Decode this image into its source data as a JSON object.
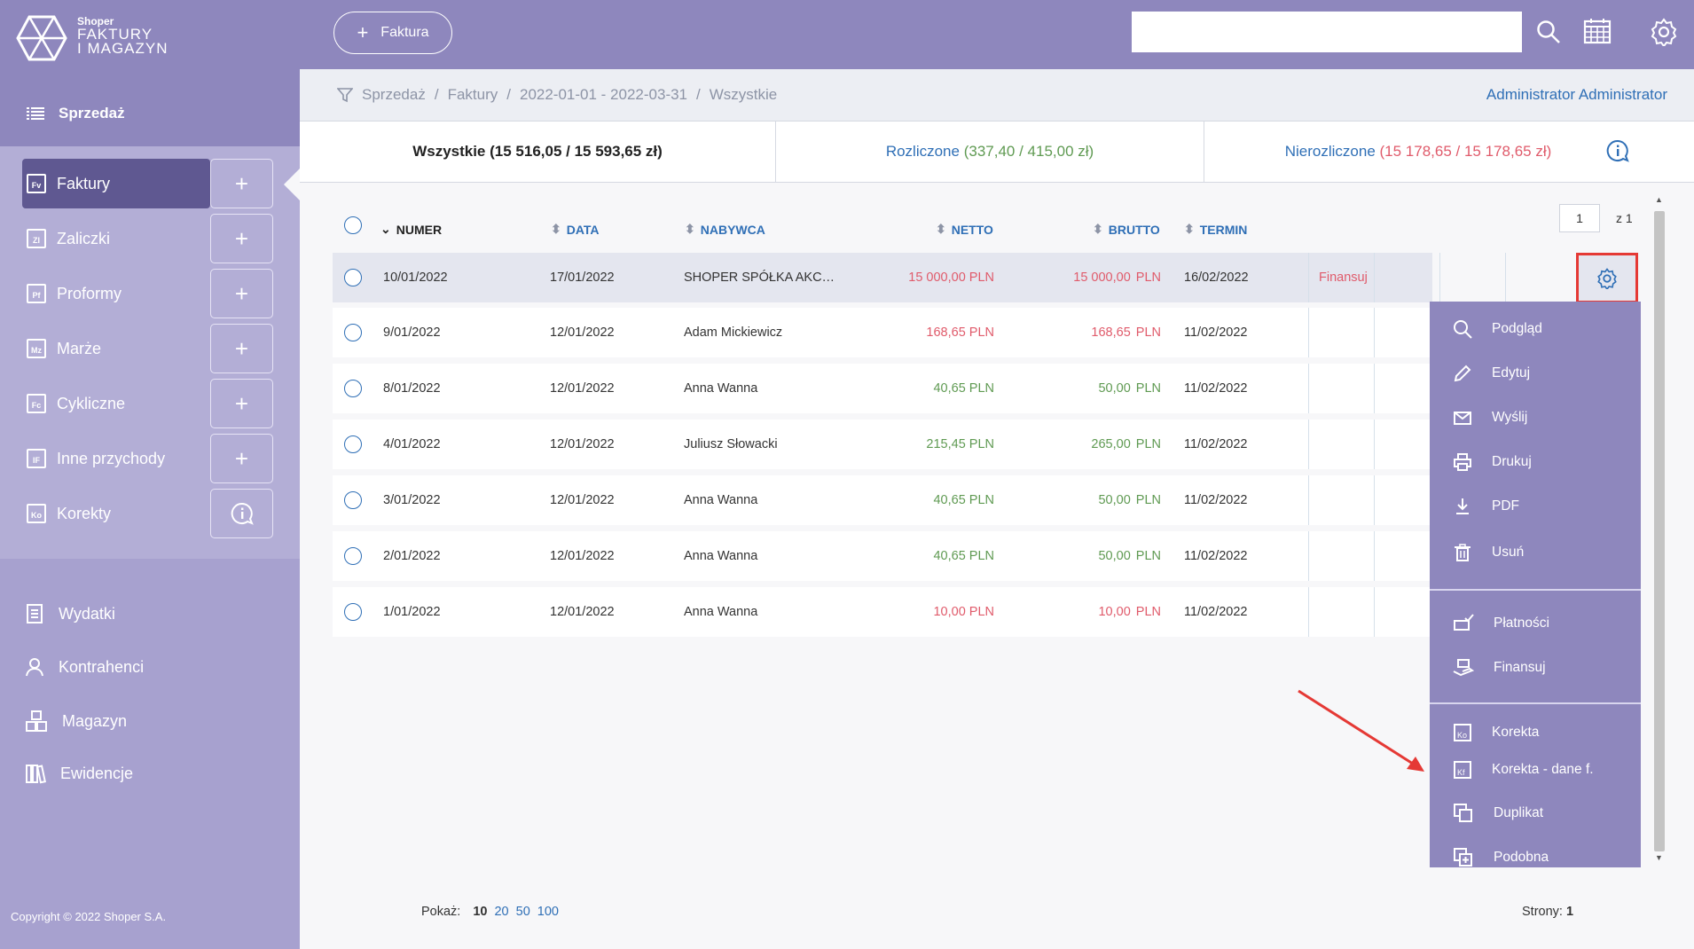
{
  "brand": {
    "line1": "Shoper",
    "line2": "FAKTURY",
    "line3": "I MAGAZYN"
  },
  "sidebar": {
    "section_title": "Sprzedaż",
    "items": [
      {
        "label": "Faktury",
        "abbr": "Fv"
      },
      {
        "label": "Zaliczki",
        "abbr": "Zl"
      },
      {
        "label": "Proformy",
        "abbr": "Pf"
      },
      {
        "label": "Marże",
        "abbr": "Mz"
      },
      {
        "label": "Cykliczne",
        "abbr": "Fc"
      },
      {
        "label": "Inne przychody",
        "abbr": "IF"
      },
      {
        "label": "Korekty",
        "abbr": "Ko"
      }
    ],
    "add_symbol": "+",
    "lower": [
      "Wydatki",
      "Kontrahenci",
      "Magazyn",
      "Ewidencje"
    ],
    "copyright": "Copyright © 2022 Shoper S.A."
  },
  "topbar": {
    "new_invoice": "Faktura",
    "search_placeholder": ""
  },
  "breadcrumb": [
    "Sprzedaż",
    "Faktury",
    "2022-01-01 - 2022-03-31",
    "Wszystkie"
  ],
  "breadcrumb_sep": "/",
  "user": "Administrator Administrator",
  "tabs": {
    "all": "Wszystkie (15 516,05 / 15 593,65 zł)",
    "settled_label": "Rozliczone",
    "settled_values": "(337,40 / 415,00 zł)",
    "unsettled_label": "Nierozliczone",
    "unsettled_values": "(15 178,65 / 15 178,65 zł)"
  },
  "pager": {
    "page": "1",
    "of": "z 1"
  },
  "table": {
    "headers": {
      "numer": "NUMER",
      "data": "DATA",
      "nabywca": "NABYWCA",
      "netto": "NETTO",
      "brutto": "BRUTTO",
      "termin": "TERMIN"
    },
    "rows": [
      {
        "numer": "10/01/2022",
        "data": "17/01/2022",
        "nabywca": "SHOPER SPÓŁKA AKC…",
        "netto": "15 000,00 PLN",
        "brutto": "15 000,00",
        "cur": "PLN",
        "termin": "16/02/2022",
        "action": "Finansuj",
        "status": "red"
      },
      {
        "numer": "9/01/2022",
        "data": "12/01/2022",
        "nabywca": "Adam Mickiewicz",
        "netto": "168,65 PLN",
        "brutto": "168,65",
        "cur": "PLN",
        "termin": "11/02/2022",
        "action": "",
        "status": "red"
      },
      {
        "numer": "8/01/2022",
        "data": "12/01/2022",
        "nabywca": "Anna Wanna",
        "netto": "40,65 PLN",
        "brutto": "50,00",
        "cur": "PLN",
        "termin": "11/02/2022",
        "action": "",
        "status": "green"
      },
      {
        "numer": "4/01/2022",
        "data": "12/01/2022",
        "nabywca": "Juliusz Słowacki",
        "netto": "215,45 PLN",
        "brutto": "265,00",
        "cur": "PLN",
        "termin": "11/02/2022",
        "action": "",
        "status": "green"
      },
      {
        "numer": "3/01/2022",
        "data": "12/01/2022",
        "nabywca": "Anna Wanna",
        "netto": "40,65 PLN",
        "brutto": "50,00",
        "cur": "PLN",
        "termin": "11/02/2022",
        "action": "",
        "status": "green"
      },
      {
        "numer": "2/01/2022",
        "data": "12/01/2022",
        "nabywca": "Anna Wanna",
        "netto": "40,65 PLN",
        "brutto": "50,00",
        "cur": "PLN",
        "termin": "11/02/2022",
        "action": "",
        "status": "green"
      },
      {
        "numer": "1/01/2022",
        "data": "12/01/2022",
        "nabywca": "Anna Wanna",
        "netto": "10,00 PLN",
        "brutto": "10,00",
        "cur": "PLN",
        "termin": "11/02/2022",
        "action": "",
        "status": "red"
      }
    ]
  },
  "menu": [
    "Podgląd",
    "Edytuj",
    "Wyślij",
    "Drukuj",
    "PDF",
    "Usuń",
    "Płatności",
    "Finansuj",
    "Korekta",
    "Korekta - dane f.",
    "Duplikat",
    "Podobna"
  ],
  "footer": {
    "show_label": "Pokaż:",
    "sizes": [
      "10",
      "20",
      "50",
      "100"
    ],
    "pages_label": "Strony:",
    "pages_value": "1"
  },
  "colors": {
    "primary": "#8e87bd",
    "active": "#5f5891",
    "link": "#2f6fb6",
    "negative": "#e05b6b",
    "positive": "#5f9a52",
    "highlight": "#e53935"
  }
}
